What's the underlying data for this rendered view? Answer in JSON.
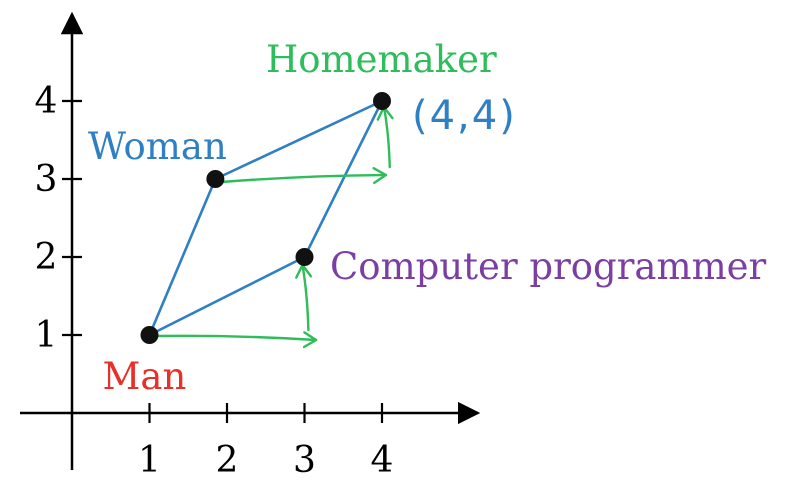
{
  "diagram": {
    "x_ticks": [
      "1",
      "2",
      "3",
      "4"
    ],
    "y_ticks": [
      "1",
      "2",
      "3",
      "4"
    ],
    "points": [
      {
        "id": "man",
        "label": "Man",
        "x": 1,
        "y": 1,
        "color": "#e8302a"
      },
      {
        "id": "woman",
        "label": "Woman",
        "x": 1.85,
        "y": 3,
        "color": "#2f7fc4"
      },
      {
        "id": "programmer",
        "label": "Computer programmer",
        "x": 3,
        "y": 2,
        "color": "#7b3fa3"
      },
      {
        "id": "homemaker",
        "label": "Homemaker",
        "x": 4,
        "y": 4,
        "color": "#2ebd5a"
      }
    ],
    "coordinate_annotation": "(4,4)",
    "colors": {
      "axis": "#000000",
      "blue_lines": "#2f7fc4",
      "green_arrows": "#2ebd5a",
      "annotation": "#2f7fc4"
    }
  }
}
